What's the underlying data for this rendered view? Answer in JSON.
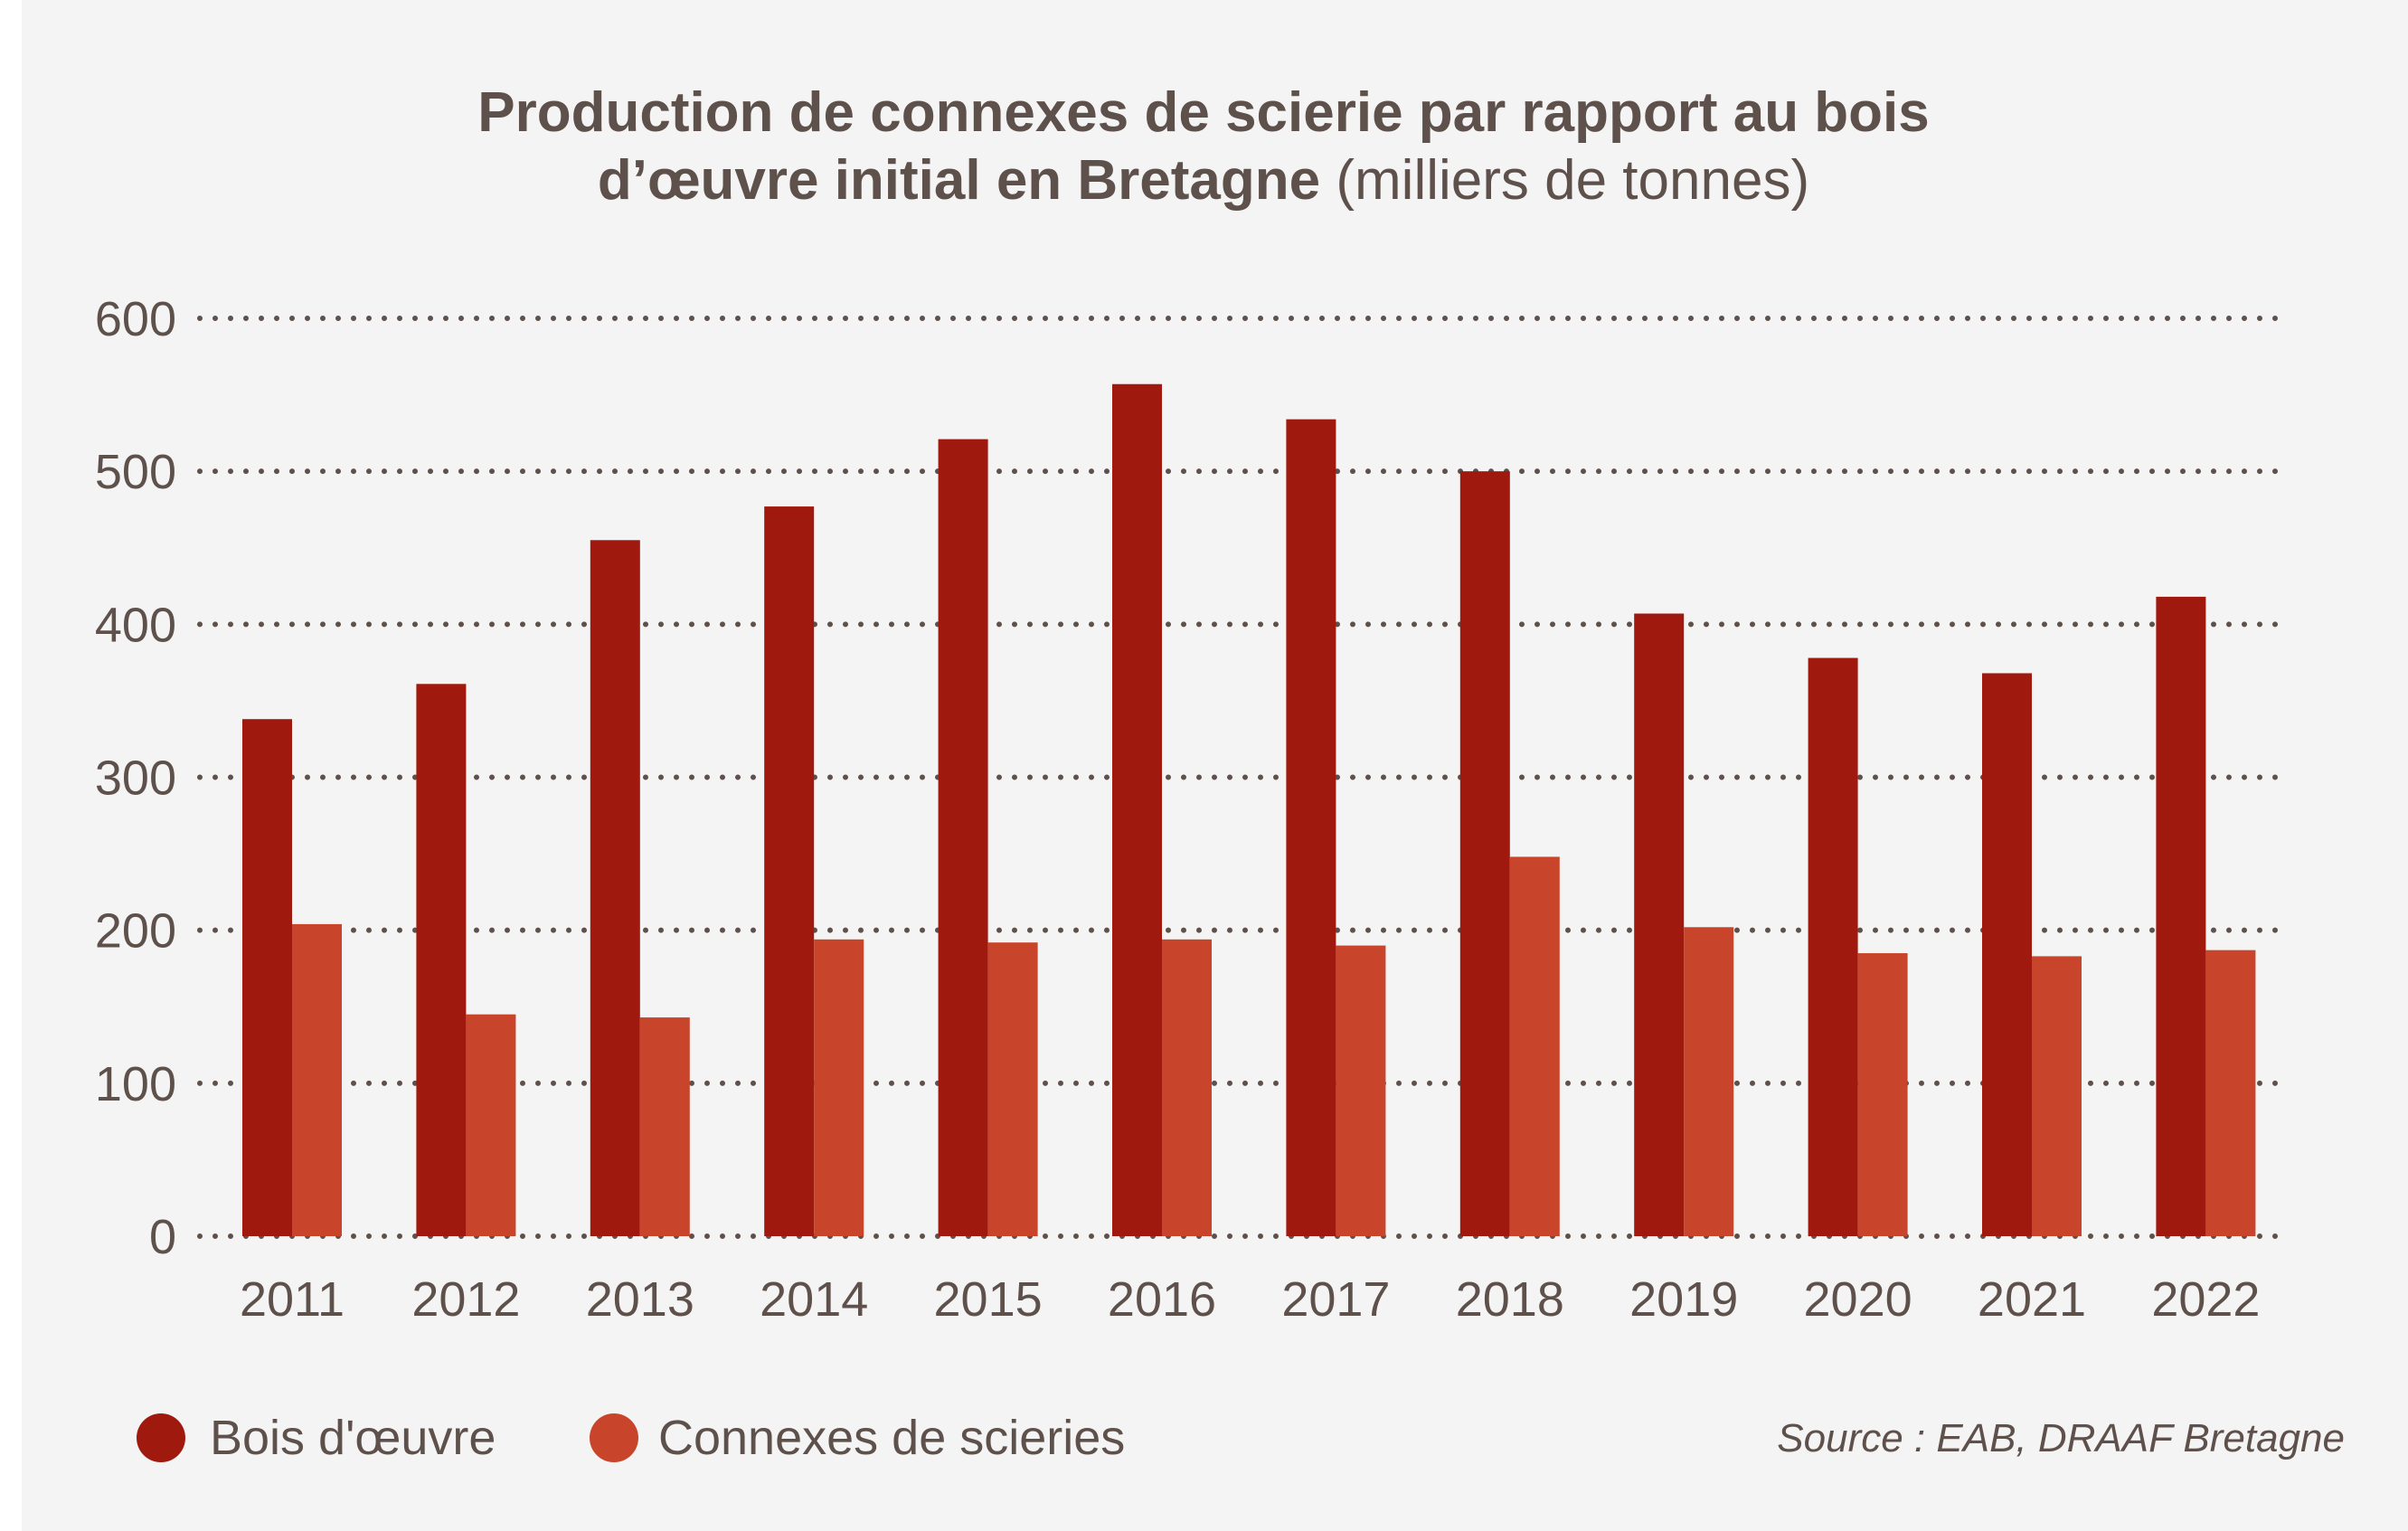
{
  "chart_data": {
    "type": "bar",
    "title_bold_line1": "Production de connexes de scierie par rapport au bois",
    "title_bold_line2": "d’œuvre initial en Bretagne",
    "title_unit": "(milliers de tonnes)",
    "categories": [
      "2011",
      "2012",
      "2013",
      "2014",
      "2015",
      "2016",
      "2017",
      "2018",
      "2019",
      "2020",
      "2021",
      "2022"
    ],
    "series": [
      {
        "name": "Bois d'œuvre",
        "color": "#a0190e",
        "values": [
          338,
          361,
          455,
          477,
          521,
          557,
          534,
          500,
          407,
          378,
          368,
          418
        ]
      },
      {
        "name": "Connexes de scieries",
        "color": "#c8452b",
        "values": [
          204,
          145,
          143,
          194,
          192,
          194,
          190,
          248,
          202,
          185,
          183,
          187
        ]
      }
    ],
    "ylim": [
      0,
      600
    ],
    "yticks": [
      "0",
      "100",
      "200",
      "300",
      "400",
      "500",
      "600"
    ],
    "grid": "dotted horizontal",
    "legend_position": "bottom-left",
    "source": "Source : EAB, DRAAF Bretagne",
    "text_color": "#5e514b",
    "background": "#f4f4f4"
  }
}
